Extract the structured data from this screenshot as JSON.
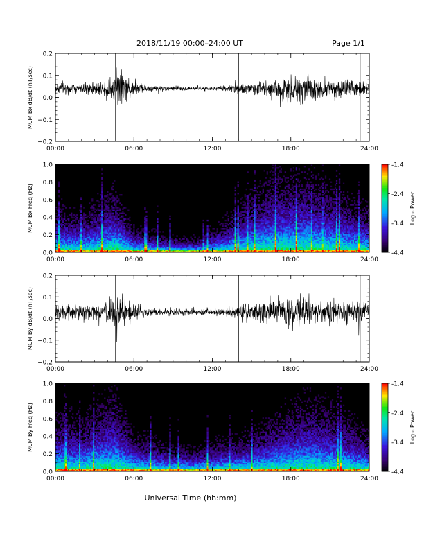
{
  "header": {
    "title": "2018/11/19   00:00–24:00 UT",
    "page": "Page 1/1"
  },
  "footer": {
    "xlabel": "Universal Time (hh:mm)"
  },
  "chart_data": [
    {
      "type": "line",
      "ylabel": "MCM Bx dB/dt (nT/sec)",
      "xlim": [
        0,
        24
      ],
      "ylim": [
        -0.2,
        0.2
      ],
      "xticks": [
        "00:00",
        "06:00",
        "12:00",
        "18:00",
        "24:00"
      ],
      "yticks": [
        "0.2",
        "0.1",
        "0.0",
        "−0.1",
        "−0.2"
      ],
      "baseline": 0.04,
      "spikes": [
        4.6,
        14.0,
        23.3
      ],
      "amplitude_envelope": [
        {
          "t": 0,
          "a": 0.035
        },
        {
          "t": 2,
          "a": 0.03
        },
        {
          "t": 3.6,
          "a": 0.04
        },
        {
          "t": 4.4,
          "a": 0.07
        },
        {
          "t": 5.0,
          "a": 0.12
        },
        {
          "t": 5.6,
          "a": 0.05
        },
        {
          "t": 7,
          "a": 0.018
        },
        {
          "t": 9,
          "a": 0.014
        },
        {
          "t": 11,
          "a": 0.01
        },
        {
          "t": 12.5,
          "a": 0.012
        },
        {
          "t": 14,
          "a": 0.03
        },
        {
          "t": 16,
          "a": 0.045
        },
        {
          "t": 17.5,
          "a": 0.07
        },
        {
          "t": 19,
          "a": 0.08
        },
        {
          "t": 20.5,
          "a": 0.06
        },
        {
          "t": 22,
          "a": 0.05
        },
        {
          "t": 24,
          "a": 0.04
        }
      ]
    },
    {
      "type": "heatmap",
      "ylabel": "MCM Bx Freq (Hz)",
      "xlim": [
        0,
        24
      ],
      "ylim": [
        0,
        1.0
      ],
      "xticks": [
        "00:00",
        "06:00",
        "12:00",
        "18:00",
        "24:00"
      ],
      "yticks": [
        "1.0",
        "0.8",
        "0.6",
        "0.4",
        "0.2",
        "0.0"
      ],
      "colorbar": {
        "label": "Log₁₀ Power",
        "ticks": [
          "-1.4",
          "-2.4",
          "-3.4",
          "-4.4"
        ],
        "range": [
          -4.4,
          -1.4
        ]
      },
      "activity_envelope": [
        {
          "t": 0,
          "f": 0.35
        },
        {
          "t": 2,
          "f": 0.3
        },
        {
          "t": 4.5,
          "f": 0.5
        },
        {
          "t": 6,
          "f": 0.2
        },
        {
          "t": 9,
          "f": 0.12
        },
        {
          "t": 11,
          "f": 0.12
        },
        {
          "t": 13,
          "f": 0.25
        },
        {
          "t": 15,
          "f": 0.45
        },
        {
          "t": 17,
          "f": 0.6
        },
        {
          "t": 19,
          "f": 0.6
        },
        {
          "t": 21,
          "f": 0.5
        },
        {
          "t": 24,
          "f": 0.35
        }
      ]
    },
    {
      "type": "line",
      "ylabel": "MCM By dB/dt (nT/sec)",
      "xlim": [
        0,
        24
      ],
      "ylim": [
        -0.2,
        0.2
      ],
      "xticks": [
        "00:00",
        "06:00",
        "12:00",
        "18:00",
        "24:00"
      ],
      "yticks": [
        "0.2",
        "0.1",
        "0.0",
        "−0.1",
        "−0.2"
      ],
      "baseline": 0.03,
      "spikes": [
        4.6,
        14.0,
        23.3
      ],
      "amplitude_envelope": [
        {
          "t": 0,
          "a": 0.045
        },
        {
          "t": 2,
          "a": 0.04
        },
        {
          "t": 3.6,
          "a": 0.05
        },
        {
          "t": 4.4,
          "a": 0.08
        },
        {
          "t": 5.0,
          "a": 0.1
        },
        {
          "t": 5.6,
          "a": 0.06
        },
        {
          "t": 7,
          "a": 0.025
        },
        {
          "t": 9,
          "a": 0.02
        },
        {
          "t": 11,
          "a": 0.018
        },
        {
          "t": 12.5,
          "a": 0.02
        },
        {
          "t": 14,
          "a": 0.045
        },
        {
          "t": 16,
          "a": 0.06
        },
        {
          "t": 17.5,
          "a": 0.08
        },
        {
          "t": 19,
          "a": 0.09
        },
        {
          "t": 20.5,
          "a": 0.07
        },
        {
          "t": 22,
          "a": 0.06
        },
        {
          "t": 24,
          "a": 0.05
        }
      ]
    },
    {
      "type": "heatmap",
      "ylabel": "MCM By Freq (Hz)",
      "xlim": [
        0,
        24
      ],
      "ylim": [
        0,
        1.0
      ],
      "xticks": [
        "00:00",
        "06:00",
        "12:00",
        "18:00",
        "24:00"
      ],
      "yticks": [
        "1.0",
        "0.8",
        "0.6",
        "0.4",
        "0.2",
        "0.0"
      ],
      "colorbar": {
        "label": "Log₁₀ Power",
        "ticks": [
          "-1.4",
          "-2.4",
          "-3.4",
          "-4.4"
        ],
        "range": [
          -4.4,
          -1.4
        ]
      },
      "activity_envelope": [
        {
          "t": 0,
          "f": 0.45
        },
        {
          "t": 2,
          "f": 0.4
        },
        {
          "t": 4.5,
          "f": 0.6
        },
        {
          "t": 6,
          "f": 0.3
        },
        {
          "t": 9,
          "f": 0.2
        },
        {
          "t": 11,
          "f": 0.2
        },
        {
          "t": 13,
          "f": 0.25
        },
        {
          "t": 15,
          "f": 0.3
        },
        {
          "t": 17,
          "f": 0.45
        },
        {
          "t": 19,
          "f": 0.55
        },
        {
          "t": 21,
          "f": 0.5
        },
        {
          "t": 24,
          "f": 0.3
        }
      ]
    }
  ]
}
